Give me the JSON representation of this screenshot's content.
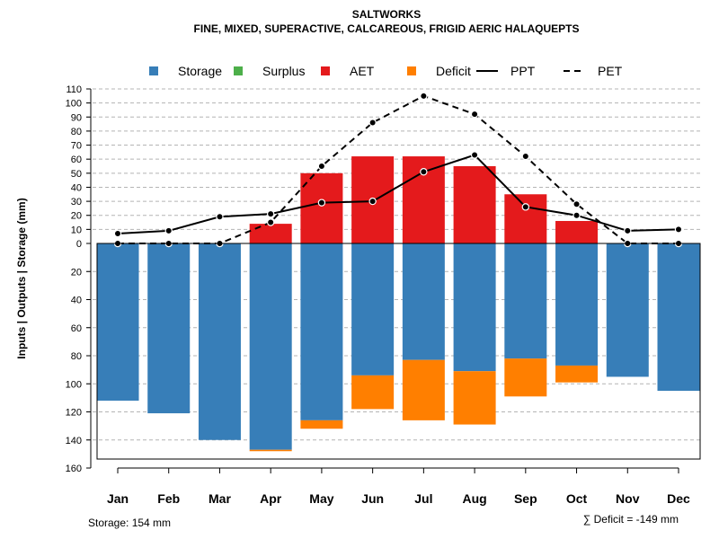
{
  "chart_data": {
    "type": "bar",
    "title": "SALTWORKS",
    "subtitle": "FINE, MIXED, SUPERACTIVE, CALCAREOUS, FRIGID AERIC HALAQUEPTS",
    "ylabel": "Inputs | Outputs | Storage    (mm)",
    "categories": [
      "Jan",
      "Feb",
      "Mar",
      "Apr",
      "May",
      "Jun",
      "Jul",
      "Aug",
      "Sep",
      "Oct",
      "Nov",
      "Dec"
    ],
    "upper_ylim": [
      0,
      110
    ],
    "upper_ticks": [
      "0",
      "10",
      "20",
      "30",
      "40",
      "50",
      "60",
      "70",
      "80",
      "90",
      "100",
      "110"
    ],
    "lower_ylim": [
      0,
      160
    ],
    "lower_ticks": [
      "0",
      "20",
      "40",
      "60",
      "80",
      "100",
      "120",
      "140",
      "160"
    ],
    "legend": [
      {
        "name": "Storage",
        "kind": "box",
        "color": "#377EB8"
      },
      {
        "name": "Surplus",
        "kind": "box",
        "color": "#4DAF4A"
      },
      {
        "name": "AET",
        "kind": "box",
        "color": "#E41A1C"
      },
      {
        "name": "Deficit",
        "kind": "box",
        "color": "#FF7F00"
      },
      {
        "name": "PPT",
        "kind": "solid",
        "color": "#000000"
      },
      {
        "name": "PET",
        "kind": "dashed",
        "color": "#000000"
      }
    ],
    "series": [
      {
        "name": "AET",
        "values": [
          0,
          0,
          0,
          14,
          50,
          62,
          62,
          55,
          35,
          16,
          0,
          0
        ]
      },
      {
        "name": "Surplus",
        "values": [
          0,
          0,
          0,
          0,
          0,
          0,
          0,
          0,
          0,
          0,
          0,
          0
        ]
      },
      {
        "name": "Storage",
        "values": [
          112,
          121,
          140,
          147,
          126,
          94,
          83,
          91,
          82,
          87,
          95,
          105
        ]
      },
      {
        "name": "Deficit",
        "values": [
          0,
          0,
          0,
          1,
          6,
          24,
          43,
          38,
          27,
          12,
          0,
          0
        ]
      },
      {
        "name": "PPT",
        "values": [
          7,
          9,
          19,
          21,
          29,
          30,
          51,
          63,
          26,
          20,
          9,
          10
        ]
      },
      {
        "name": "PET",
        "values": [
          0,
          0,
          0,
          15,
          55,
          86,
          105,
          92,
          62,
          28,
          0,
          0
        ]
      }
    ],
    "footnote_left": "Storage: 154 mm",
    "footnote_right": "∑ Deficit = -149 mm"
  }
}
